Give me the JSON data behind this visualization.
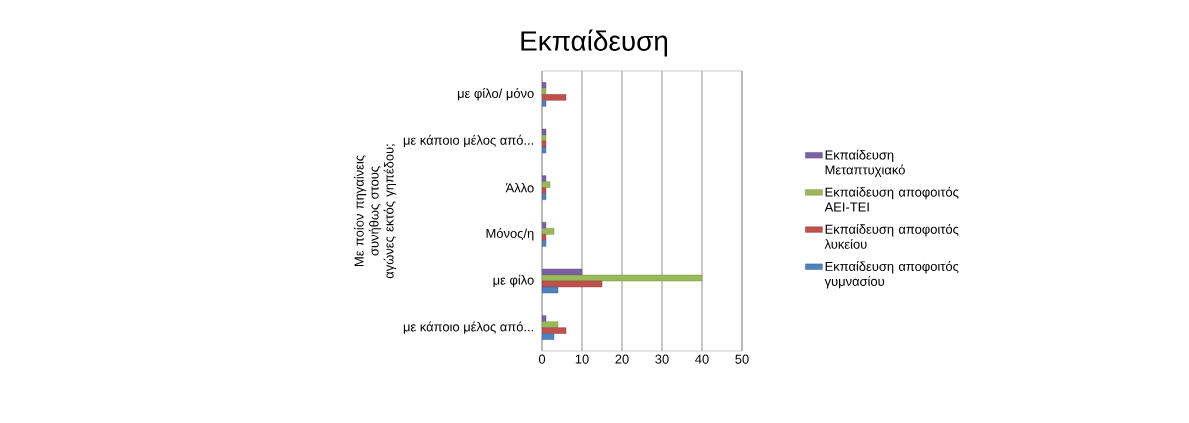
{
  "chart_data": {
    "type": "bar",
    "orientation": "horizontal",
    "title": "Εκπαίδευση",
    "ylabel": "Με ποίον πηγαίνεις συνήθως στους αγώνες εκτός γηπέδου;",
    "categories": [
      "με φίλο/ μόνο",
      "με κάποιο μέλος από...",
      "Άλλο",
      "Μόνος/η",
      "με φίλο",
      "με κάποιο μέλος από..."
    ],
    "series": [
      {
        "name": "Εκπαίδευση Μεταπτυχιακό",
        "color": "#7e5fa6",
        "values": [
          1,
          1,
          1,
          1,
          10,
          1
        ]
      },
      {
        "name": "Εκπαίδευση αποφοιτός ΑΕΙ-ΤΕΙ",
        "color": "#9aba59",
        "values": [
          1,
          1,
          2,
          3,
          40,
          4
        ]
      },
      {
        "name": "Εκπαίδευση αποφοιτός λυκείου",
        "color": "#c0504d",
        "values": [
          6,
          1,
          1,
          1,
          15,
          6
        ]
      },
      {
        "name": "Εκπαίδευση αποφοιτός γυμνασίου",
        "color": "#4f81bd",
        "values": [
          1,
          1,
          1,
          1,
          4,
          3
        ]
      }
    ],
    "xlim": [
      0,
      50
    ],
    "xticks": [
      0,
      10,
      20,
      30,
      40,
      50
    ],
    "grid": "x",
    "legend": "right"
  }
}
